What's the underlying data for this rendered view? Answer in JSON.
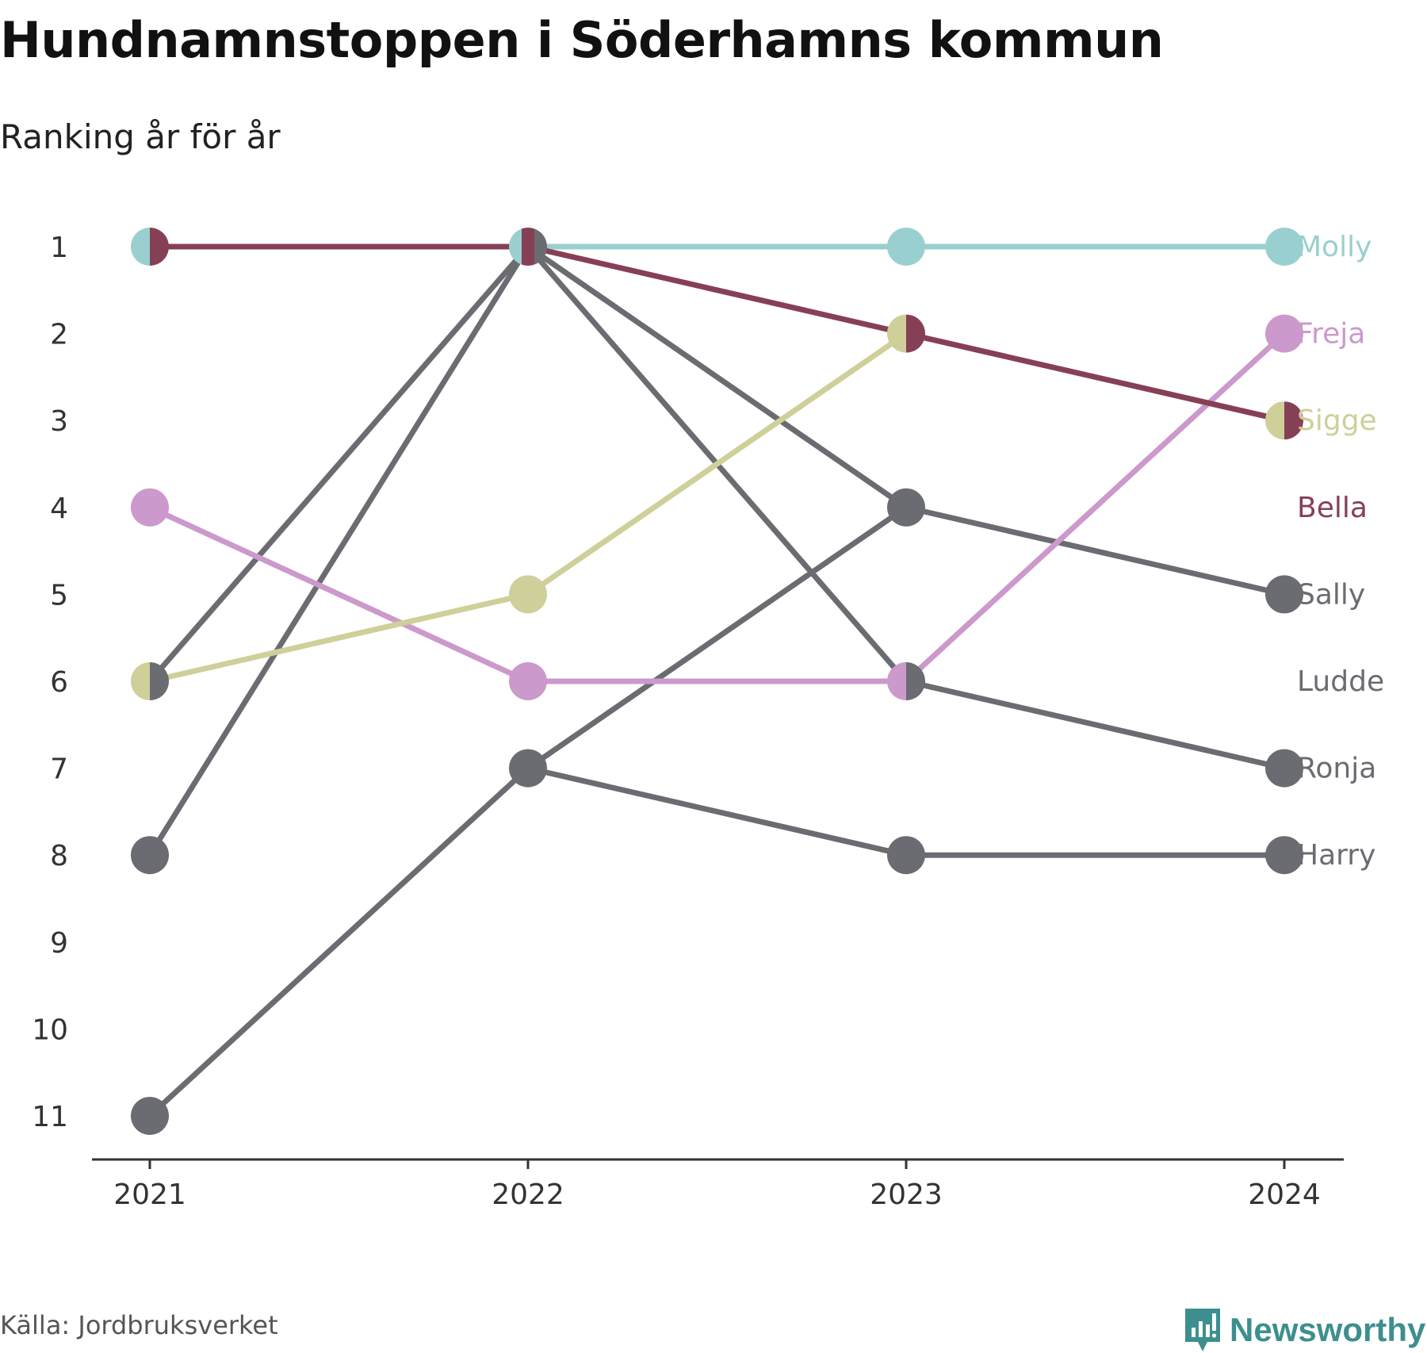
{
  "header": {
    "title": "Hundnamnstoppen i Söderhamns kommun",
    "subtitle": "Ranking år för år"
  },
  "footer": {
    "source": "Källa: Jordbruksverket",
    "brand": "Newsworthy",
    "brand_icon": "newsworthy-logo-icon"
  },
  "colors": {
    "Molly": "#9acfcf",
    "Freja": "#cc99cc",
    "Sigge": "#cfcf99",
    "Bella": "#864055",
    "other": "#6b6b72"
  },
  "chart_data": {
    "type": "line",
    "subtype": "bump",
    "x": [
      "2021",
      "2022",
      "2023",
      "2024"
    ],
    "y_ticks": [
      "1",
      "2",
      "3",
      "4",
      "5",
      "6",
      "7",
      "8",
      "9",
      "10",
      "11"
    ],
    "y_inverted": true,
    "ylim": [
      1,
      11
    ],
    "grid": false,
    "series": [
      {
        "name": "Molly",
        "values": [
          1,
          1,
          1,
          1
        ]
      },
      {
        "name": "Freja",
        "values": [
          4,
          6,
          6,
          2
        ]
      },
      {
        "name": "Sigge",
        "values": [
          6,
          5,
          2,
          3
        ]
      },
      {
        "name": "Bella",
        "values": [
          1,
          1,
          2,
          3
        ]
      },
      {
        "name": "Sally",
        "values": [
          6,
          1,
          4,
          5
        ]
      },
      {
        "name": "Ludde",
        "values": [
          11,
          7,
          4,
          null
        ]
      },
      {
        "name": "Ronja",
        "values": [
          8,
          1,
          6,
          7
        ]
      },
      {
        "name": "Harry",
        "values": [
          null,
          7,
          8,
          8
        ]
      }
    ],
    "end_labels": [
      "Molly",
      "Freja",
      "Sigge",
      "Bella",
      "Sally",
      "Ludde",
      "Ronja",
      "Harry"
    ]
  }
}
